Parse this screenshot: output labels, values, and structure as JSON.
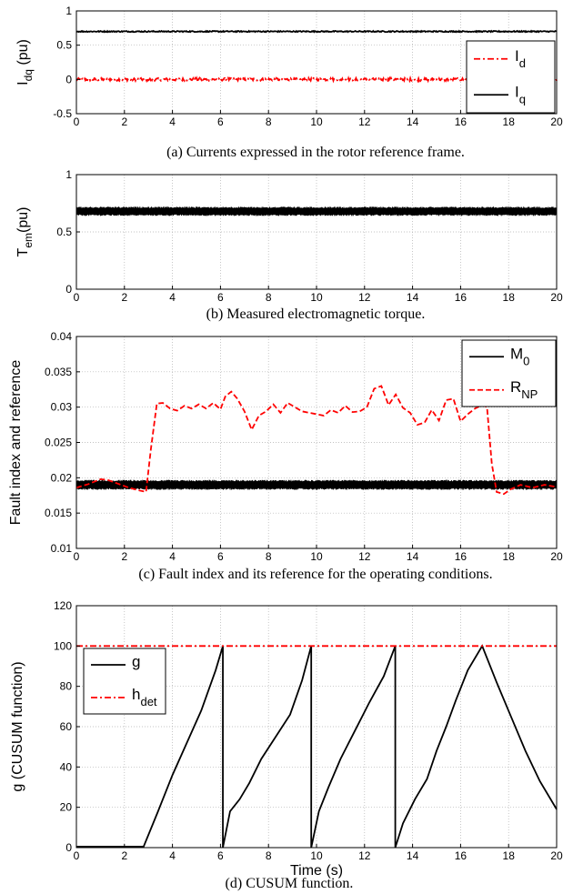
{
  "chart_data": [
    {
      "type": "line",
      "caption": "(a) Currents expressed in the rotor reference frame.",
      "ylabel": {
        "main": "I",
        "sub": "dq",
        "tail": " (pu)"
      },
      "xlim": [
        0,
        20
      ],
      "ylim": [
        -0.5,
        1
      ],
      "xticks": [
        0,
        2,
        4,
        6,
        8,
        10,
        12,
        14,
        16,
        18,
        20
      ],
      "yticks": [
        -0.5,
        0,
        0.5,
        1
      ],
      "yticklabels": [
        "-0.5",
        "0",
        "0.5",
        "1"
      ],
      "grid": true,
      "legend": "top-right",
      "series": [
        {
          "name": "I",
          "name_sub": "d",
          "color": "#ff0000",
          "style": "dashdot",
          "level": 0.0,
          "noise": 0.02
        },
        {
          "name": "I",
          "name_sub": "q",
          "color": "#000000",
          "style": "solid",
          "level": 0.7,
          "noise": 0.008
        }
      ]
    },
    {
      "type": "line",
      "caption": "(b) Measured electromagnetic torque.",
      "ylabel": {
        "main": "T",
        "sub": "em",
        "tail": "(pu)"
      },
      "xlim": [
        0,
        20
      ],
      "ylim": [
        0,
        1
      ],
      "xticks": [
        0,
        2,
        4,
        6,
        8,
        10,
        12,
        14,
        16,
        18,
        20
      ],
      "yticks": [
        0,
        0.5,
        1
      ],
      "yticklabels": [
        "0",
        "0.5",
        "1"
      ],
      "grid": true,
      "series": [
        {
          "color": "#000000",
          "style": "solid",
          "band": [
            0.64,
            0.72
          ]
        }
      ]
    },
    {
      "type": "line",
      "caption": "(c) Fault index and its reference for the operating conditions.",
      "ylabel": {
        "main": "Fault index and reference",
        "sub": "",
        "tail": ""
      },
      "xlim": [
        0,
        20
      ],
      "ylim": [
        0.01,
        0.04
      ],
      "xticks": [
        0,
        2,
        4,
        6,
        8,
        10,
        12,
        14,
        16,
        18,
        20
      ],
      "yticks": [
        0.01,
        0.015,
        0.02,
        0.025,
        0.03,
        0.035,
        0.04
      ],
      "yticklabels": [
        "0.01",
        "0.015",
        "0.02",
        "0.025",
        "0.03",
        "0.035",
        "0.04"
      ],
      "grid": true,
      "legend": "top-right",
      "series": [
        {
          "name": "M",
          "name_sub": "0",
          "color": "#000000",
          "style": "solid",
          "band": [
            0.0183,
            0.0197
          ]
        },
        {
          "name": "R",
          "name_sub": "NP",
          "color": "#ff0000",
          "style": "dashed",
          "x": [
            0,
            0.5,
            1,
            1.3,
            1.7,
            2.1,
            2.5,
            2.9,
            3.1,
            3.35,
            3.6,
            3.9,
            4.2,
            4.5,
            4.8,
            5.1,
            5.4,
            5.7,
            6.0,
            6.2,
            6.45,
            6.7,
            7.0,
            7.3,
            7.6,
            7.9,
            8.2,
            8.5,
            8.8,
            9.1,
            9.4,
            9.7,
            10.0,
            10.3,
            10.6,
            10.9,
            11.2,
            11.5,
            11.8,
            12.1,
            12.4,
            12.7,
            13.0,
            13.3,
            13.6,
            13.9,
            14.2,
            14.5,
            14.8,
            15.1,
            15.4,
            15.7,
            16.0,
            16.3,
            16.6,
            16.9,
            17.1,
            17.3,
            17.5,
            17.8,
            18.1,
            18.5,
            19.0,
            19.5,
            20
          ],
          "values": [
            0.0186,
            0.0191,
            0.0198,
            0.0197,
            0.0192,
            0.0187,
            0.0183,
            0.018,
            0.024,
            0.0305,
            0.0306,
            0.0298,
            0.0295,
            0.0302,
            0.0298,
            0.0304,
            0.0298,
            0.0306,
            0.0297,
            0.0315,
            0.0322,
            0.0312,
            0.0294,
            0.0268,
            0.0288,
            0.0294,
            0.0304,
            0.0292,
            0.0306,
            0.03,
            0.0294,
            0.0292,
            0.029,
            0.0288,
            0.0296,
            0.0292,
            0.0302,
            0.0293,
            0.0294,
            0.03,
            0.0326,
            0.033,
            0.0303,
            0.0318,
            0.0299,
            0.0292,
            0.0275,
            0.0278,
            0.0296,
            0.0281,
            0.031,
            0.0312,
            0.028,
            0.029,
            0.0298,
            0.0303,
            0.03,
            0.022,
            0.018,
            0.0177,
            0.0184,
            0.019,
            0.0186,
            0.019,
            0.0187
          ]
        }
      ]
    },
    {
      "type": "line",
      "caption": "(d) CUSUM function.",
      "xlabel": "Time (s)",
      "ylabel": {
        "main": "g (CUSUM function)",
        "sub": "",
        "tail": ""
      },
      "xlim": [
        0,
        20
      ],
      "ylim": [
        0,
        120
      ],
      "xticks": [
        0,
        2,
        4,
        6,
        8,
        10,
        12,
        14,
        16,
        18,
        20
      ],
      "yticks": [
        0,
        20,
        40,
        60,
        80,
        100,
        120
      ],
      "yticklabels": [
        "0",
        "20",
        "40",
        "60",
        "80",
        "100",
        "120"
      ],
      "grid": true,
      "legend": "top-left",
      "series": [
        {
          "name": "g",
          "name_sub": "",
          "color": "#000000",
          "style": "solid",
          "x": [
            0,
            2.8,
            3.4,
            4.0,
            4.6,
            5.2,
            5.8,
            6.1,
            6.1,
            6.4,
            6.8,
            7.2,
            7.7,
            8.3,
            8.9,
            9.4,
            9.78,
            9.78,
            10.1,
            10.5,
            11.0,
            11.6,
            12.2,
            12.8,
            13.28,
            13.28,
            13.6,
            14.1,
            14.6,
            15.0,
            15.4,
            15.8,
            16.3,
            16.9,
            17.5,
            18.1,
            18.7,
            19.3,
            20
          ],
          "values": [
            0.5,
            0.5,
            18,
            36,
            52,
            68,
            88,
            100,
            0,
            18,
            24,
            32,
            44,
            55,
            66,
            83,
            100,
            0,
            18,
            30,
            44,
            58,
            72,
            85,
            100,
            0,
            12,
            24,
            34,
            48,
            60,
            73,
            88,
            100,
            82,
            65,
            48,
            33,
            19
          ]
        },
        {
          "name": "h",
          "name_sub": "det",
          "color": "#ff0000",
          "style": "dashdot",
          "level": 100
        }
      ]
    }
  ]
}
